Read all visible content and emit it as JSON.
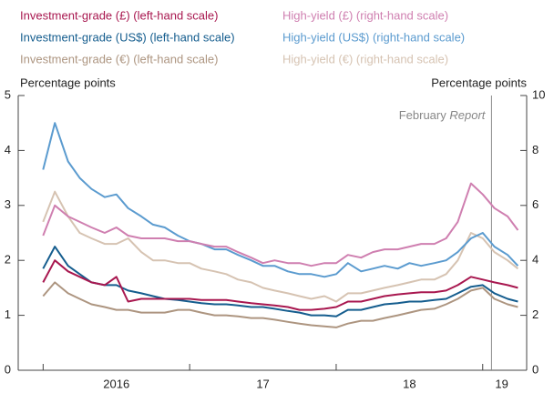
{
  "chart_data": {
    "type": "line",
    "ylabel": "Percentage points",
    "y2label": "Percentage points",
    "xlim": [
      2015.83,
      2019.3
    ],
    "xticks": [
      2016,
      2017,
      2018,
      2019
    ],
    "xlabels": [
      {
        "value": 2016.5,
        "label": "2016"
      },
      {
        "value": 2017.5,
        "label": "17"
      },
      {
        "value": 2018.5,
        "label": "18"
      },
      {
        "value": 2019.13,
        "label": "19"
      }
    ],
    "ylim": [
      0,
      5
    ],
    "yticks": [
      0,
      1,
      2,
      3,
      4,
      5
    ],
    "y2lim": [
      0,
      10
    ],
    "y2ticks": [
      0,
      2,
      4,
      6,
      8,
      10
    ],
    "annotation": {
      "x": 2019.06,
      "text": [
        "February",
        "Report"
      ]
    },
    "x": [
      2016.0,
      2016.08,
      2016.17,
      2016.25,
      2016.33,
      2016.42,
      2016.5,
      2016.58,
      2016.67,
      2016.75,
      2016.83,
      2016.92,
      2017.0,
      2017.08,
      2017.17,
      2017.25,
      2017.33,
      2017.42,
      2017.5,
      2017.58,
      2017.67,
      2017.75,
      2017.83,
      2017.92,
      2018.0,
      2018.08,
      2018.17,
      2018.25,
      2018.33,
      2018.42,
      2018.5,
      2018.58,
      2018.67,
      2018.75,
      2018.83,
      2018.92,
      2019.0,
      2019.08,
      2019.17,
      2019.24
    ],
    "series": [
      {
        "name": "Investment-grade (£) (left-hand scale)",
        "color": "#a8174f",
        "values": [
          1.6,
          2.0,
          1.8,
          1.7,
          1.6,
          1.55,
          1.7,
          1.25,
          1.3,
          1.3,
          1.3,
          1.3,
          1.3,
          1.28,
          1.28,
          1.28,
          1.25,
          1.22,
          1.2,
          1.18,
          1.15,
          1.1,
          1.1,
          1.12,
          1.15,
          1.25,
          1.25,
          1.3,
          1.35,
          1.38,
          1.4,
          1.42,
          1.42,
          1.45,
          1.55,
          1.7,
          1.65,
          1.6,
          1.55,
          1.5
        ]
      },
      {
        "name": "Investment-grade (US$) (left-hand scale)",
        "color": "#155d8e",
        "values": [
          1.85,
          2.25,
          1.9,
          1.75,
          1.6,
          1.55,
          1.55,
          1.45,
          1.4,
          1.35,
          1.3,
          1.28,
          1.25,
          1.22,
          1.2,
          1.2,
          1.18,
          1.15,
          1.15,
          1.12,
          1.08,
          1.05,
          1.0,
          1.0,
          0.98,
          1.1,
          1.1,
          1.15,
          1.2,
          1.22,
          1.25,
          1.25,
          1.28,
          1.3,
          1.4,
          1.52,
          1.55,
          1.4,
          1.3,
          1.25
        ]
      },
      {
        "name": "Investment-grade (€) (left-hand scale)",
        "color": "#ad9580",
        "values": [
          1.35,
          1.6,
          1.4,
          1.3,
          1.2,
          1.15,
          1.1,
          1.1,
          1.05,
          1.05,
          1.05,
          1.1,
          1.1,
          1.05,
          1.0,
          1.0,
          0.98,
          0.95,
          0.95,
          0.92,
          0.88,
          0.85,
          0.82,
          0.8,
          0.78,
          0.85,
          0.9,
          0.9,
          0.95,
          1.0,
          1.05,
          1.1,
          1.12,
          1.2,
          1.3,
          1.45,
          1.5,
          1.3,
          1.2,
          1.15
        ]
      },
      {
        "name": "High-yield (£) (right-hand scale)",
        "color": "#cf7fb0",
        "axis": "y2",
        "values": [
          4.9,
          6.0,
          5.6,
          5.4,
          5.2,
          5.0,
          5.2,
          4.9,
          4.8,
          4.8,
          4.8,
          4.7,
          4.7,
          4.6,
          4.5,
          4.5,
          4.3,
          4.1,
          3.9,
          4.0,
          3.9,
          3.9,
          3.8,
          3.9,
          3.9,
          4.2,
          4.1,
          4.3,
          4.4,
          4.4,
          4.5,
          4.6,
          4.6,
          4.8,
          5.4,
          6.8,
          6.4,
          5.9,
          5.6,
          5.1
        ]
      },
      {
        "name": "High-yield (US$) (right-hand scale)",
        "color": "#5b9bcf",
        "axis": "y2",
        "values": [
          7.3,
          9.0,
          7.6,
          7.0,
          6.6,
          6.3,
          6.4,
          5.9,
          5.6,
          5.3,
          5.2,
          4.9,
          4.7,
          4.6,
          4.4,
          4.4,
          4.2,
          4.0,
          3.8,
          3.8,
          3.6,
          3.5,
          3.5,
          3.4,
          3.5,
          3.9,
          3.6,
          3.7,
          3.8,
          3.7,
          3.9,
          3.8,
          3.9,
          4.0,
          4.3,
          4.8,
          5.0,
          4.5,
          4.2,
          3.8
        ]
      },
      {
        "name": "High-yield (€) (right-hand scale)",
        "color": "#d6c3b2",
        "axis": "y2",
        "values": [
          5.4,
          6.5,
          5.6,
          5.0,
          4.8,
          4.6,
          4.6,
          4.8,
          4.3,
          4.0,
          4.0,
          3.9,
          3.9,
          3.7,
          3.6,
          3.5,
          3.3,
          3.2,
          3.0,
          2.9,
          2.8,
          2.7,
          2.6,
          2.7,
          2.5,
          2.8,
          2.8,
          2.9,
          3.0,
          3.1,
          3.2,
          3.3,
          3.3,
          3.5,
          4.0,
          5.0,
          4.8,
          4.3,
          4.0,
          3.7
        ]
      }
    ]
  }
}
